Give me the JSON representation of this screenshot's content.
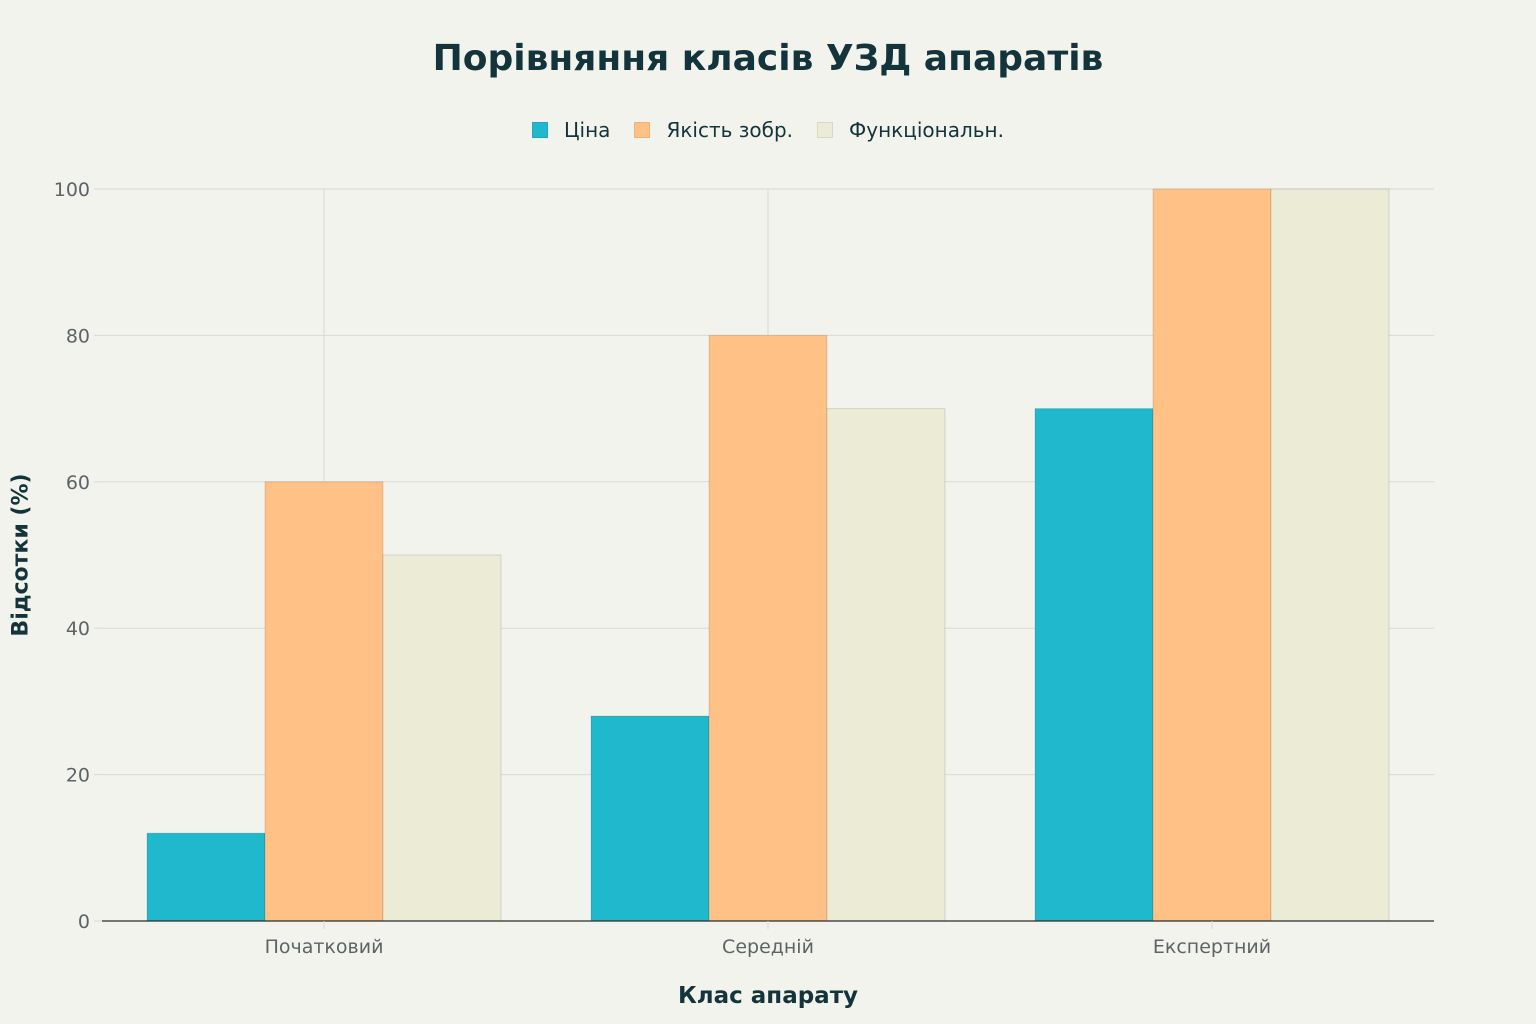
{
  "chart_data": {
    "type": "bar",
    "title": "Порівняння класів УЗД апаратів",
    "xlabel": "Клас апарату",
    "ylabel": "Відсотки (%)",
    "categories": [
      "Початковий",
      "Середній",
      "Експертний"
    ],
    "series": [
      {
        "name": "Ціна",
        "values": [
          12,
          28,
          70
        ],
        "color": "#1fb8cd"
      },
      {
        "name": "Якість зобр.",
        "values": [
          60,
          80,
          100
        ],
        "color": "#ffc185"
      },
      {
        "name": "Функціональн.",
        "values": [
          50,
          70,
          100
        ],
        "color": "#eceBd5"
      }
    ],
    "ylim": [
      0,
      100
    ],
    "yticks": [
      0,
      20,
      40,
      60,
      80,
      100
    ],
    "grid": true,
    "legend_position": "top-center"
  }
}
